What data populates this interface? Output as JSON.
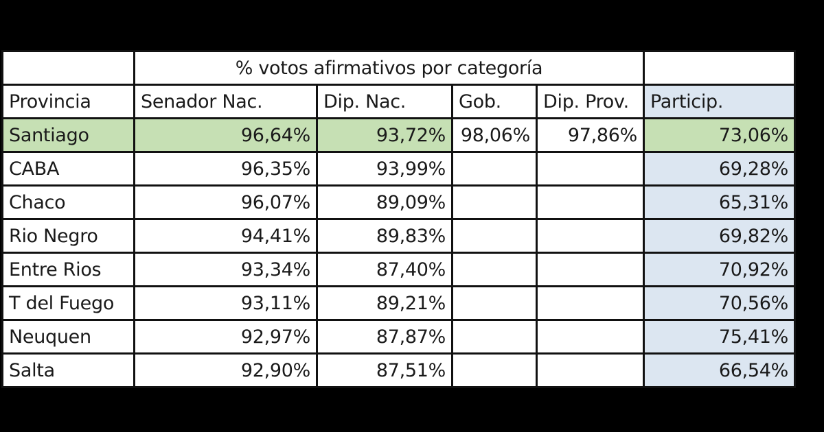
{
  "table": {
    "group_header": "% votos afirmativos por categoría",
    "columns": [
      "Provincia",
      "Senador Nac.",
      "Dip. Nac.",
      "Gob.",
      "Dip. Prov.",
      "Particip."
    ],
    "rows": [
      {
        "provincia": "Santiago",
        "senador": "96,64%",
        "dip_nac": "93,72%",
        "gob": "98,06%",
        "dip_prov": "97,86%",
        "particip": "73,06%"
      },
      {
        "provincia": "CABA",
        "senador": "96,35%",
        "dip_nac": "93,99%",
        "gob": "",
        "dip_prov": "",
        "particip": "69,28%"
      },
      {
        "provincia": "Chaco",
        "senador": "96,07%",
        "dip_nac": "89,09%",
        "gob": "",
        "dip_prov": "",
        "particip": "65,31%"
      },
      {
        "provincia": "Rio Negro",
        "senador": "94,41%",
        "dip_nac": "89,83%",
        "gob": "",
        "dip_prov": "",
        "particip": "69,82%"
      },
      {
        "provincia": "Entre Rios",
        "senador": "93,34%",
        "dip_nac": "87,40%",
        "gob": "",
        "dip_prov": "",
        "particip": "70,92%"
      },
      {
        "provincia": "T del Fuego",
        "senador": "93,11%",
        "dip_nac": "89,21%",
        "gob": "",
        "dip_prov": "",
        "particip": "70,56%"
      },
      {
        "provincia": "Neuquen",
        "senador": "92,97%",
        "dip_nac": "87,87%",
        "gob": "",
        "dip_prov": "",
        "particip": "75,41%"
      },
      {
        "provincia": "Salta",
        "senador": "92,90%",
        "dip_nac": "87,51%",
        "gob": "",
        "dip_prov": "",
        "particip": "66,54%"
      }
    ],
    "highlight_row": "Santiago",
    "colors": {
      "highlight_green": "#c6e0b4",
      "particip_blue": "#dce6f1",
      "border": "#111111",
      "frame": "#000000"
    }
  }
}
